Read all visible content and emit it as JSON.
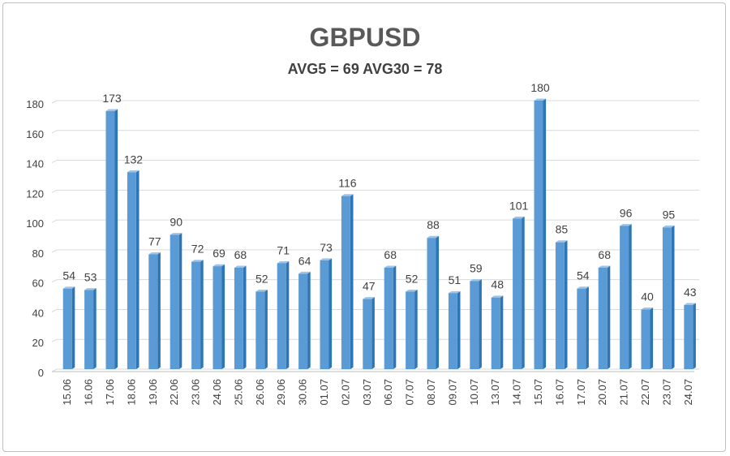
{
  "chart_data": {
    "type": "bar",
    "title": "GBPUSD",
    "subtitle": "AVG5 = 69 AVG30 = 78",
    "categories": [
      "15.06",
      "16.06",
      "17.06",
      "18.06",
      "19.06",
      "22.06",
      "23.06",
      "24.06",
      "25.06",
      "26.06",
      "29.06",
      "30.06",
      "01.07",
      "02.07",
      "03.07",
      "06.07",
      "07.07",
      "08.07",
      "09.07",
      "10.07",
      "13.07",
      "14.07",
      "15.07",
      "16.07",
      "17.07",
      "20.07",
      "21.07",
      "22.07",
      "23.07",
      "24.07"
    ],
    "values": [
      54,
      53,
      173,
      132,
      77,
      90,
      72,
      69,
      68,
      52,
      71,
      64,
      73,
      116,
      47,
      68,
      52,
      88,
      51,
      59,
      48,
      101,
      180,
      85,
      54,
      68,
      96,
      40,
      95,
      43
    ],
    "yticks": [
      0,
      20,
      40,
      60,
      80,
      100,
      120,
      140,
      160,
      180
    ],
    "ylim": [
      0,
      180
    ],
    "grid": true,
    "data_labels": true,
    "colors": {
      "bar": "#5b9bd5",
      "bar_dark": "#2e75b6",
      "bar_light": "#9dc3e6",
      "grid": "#d9d9d9",
      "text": "#404040"
    }
  }
}
